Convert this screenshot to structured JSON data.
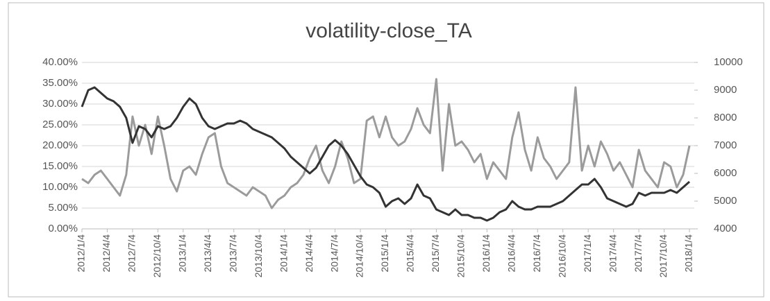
{
  "chart_data": {
    "type": "line",
    "title": "volatility-close_TA",
    "categories": [
      "2012/1/4",
      null,
      null,
      null,
      "2012/4/4",
      null,
      null,
      null,
      "2012/7/4",
      null,
      null,
      null,
      "2012/10/4",
      null,
      null,
      null,
      "2013/1/4",
      null,
      null,
      null,
      "2013/4/4",
      null,
      null,
      null,
      "2013/7/4",
      null,
      null,
      null,
      "2013/10/4",
      null,
      null,
      null,
      "2014/1/4",
      null,
      null,
      null,
      "2014/4/4",
      null,
      null,
      null,
      "2014/7/4",
      null,
      null,
      null,
      "2014/10/4",
      null,
      null,
      null,
      "2015/1/4",
      null,
      null,
      null,
      "2015/4/4",
      null,
      null,
      null,
      "2015/7/4",
      null,
      null,
      null,
      "2015/10/4",
      null,
      null,
      null,
      "2016/1/4",
      null,
      null,
      null,
      "2016/4/4",
      null,
      null,
      null,
      "2016/7/4",
      null,
      null,
      null,
      "2016/10/4",
      null,
      null,
      null,
      "2017/1/4",
      null,
      null,
      null,
      "2017/4/4",
      null,
      null,
      null,
      "2017/7/4",
      null,
      null,
      null,
      "2017/10/4",
      null,
      null,
      null,
      "2018/1/4"
    ],
    "series": [
      {
        "color": "#9b9b9b",
        "values": [
          12,
          11,
          13,
          14,
          12,
          10,
          8,
          13,
          27,
          20,
          25,
          18,
          27,
          20,
          12,
          9,
          14,
          15,
          13,
          18,
          22,
          23,
          15,
          11,
          10,
          9,
          8,
          10,
          9,
          8,
          5,
          7,
          8,
          10,
          11,
          13,
          17,
          20,
          14,
          11,
          15,
          21,
          17,
          11,
          12,
          26,
          27,
          22,
          27,
          22,
          20,
          21,
          24,
          29,
          25,
          23,
          36,
          14,
          30,
          20,
          21,
          19,
          16,
          18,
          12,
          16,
          14,
          12,
          22,
          28,
          19,
          14,
          22,
          17,
          15,
          12,
          14,
          16,
          34,
          14,
          20,
          15,
          21,
          18,
          14,
          16,
          13,
          10,
          19,
          14,
          12,
          10,
          16,
          15,
          10,
          13,
          20
        ]
      },
      {
        "color": "#333333",
        "axis": "y2",
        "values": [
          8400,
          9000,
          9100,
          8900,
          8700,
          8600,
          8400,
          8000,
          7100,
          7700,
          7600,
          7300,
          7700,
          7600,
          7700,
          8000,
          8400,
          8700,
          8500,
          8000,
          7700,
          7600,
          7700,
          7800,
          7800,
          7900,
          7800,
          7600,
          7500,
          7400,
          7300,
          7100,
          6900,
          6600,
          6400,
          6200,
          6000,
          6200,
          6600,
          7000,
          7200,
          7000,
          6700,
          6300,
          5900,
          5600,
          5500,
          5300,
          4800,
          5000,
          5100,
          4900,
          5100,
          5600,
          5200,
          5100,
          4700,
          4600,
          4500,
          4700,
          4500,
          4500,
          4400,
          4400,
          4300,
          4400,
          4600,
          4700,
          5000,
          4800,
          4700,
          4700,
          4800,
          4800,
          4800,
          4900,
          5000,
          5200,
          5400,
          5600,
          5600,
          5800,
          5500,
          5100,
          5000,
          4900,
          4800,
          4900,
          5300,
          5200,
          5300,
          5300,
          5300,
          5400,
          5300,
          5500,
          5700
        ]
      }
    ],
    "ylim": [
      0,
      40
    ],
    "yticks": [
      {
        "value": 0,
        "label": "0.00%"
      },
      {
        "value": 5,
        "label": "5.00%"
      },
      {
        "value": 10,
        "label": "10.00%"
      },
      {
        "value": 15,
        "label": "15.00%"
      },
      {
        "value": 20,
        "label": "20.00%"
      },
      {
        "value": 25,
        "label": "25.00%"
      },
      {
        "value": 30,
        "label": "30.00%"
      },
      {
        "value": 35,
        "label": "35.00%"
      },
      {
        "value": 40,
        "label": "40.00%"
      }
    ],
    "y2lim": [
      4000,
      10000
    ],
    "y2ticks": [
      4000,
      5000,
      6000,
      7000,
      8000,
      9000,
      10000
    ],
    "grid": true
  }
}
